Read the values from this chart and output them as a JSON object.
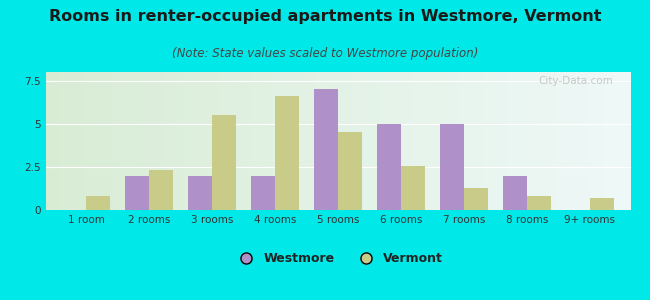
{
  "title": "Rooms in renter-occupied apartments in Westmore, Vermont",
  "subtitle": "(Note: State values scaled to Westmore population)",
  "categories": [
    "1 room",
    "2 rooms",
    "3 rooms",
    "4 rooms",
    "5 rooms",
    "6 rooms",
    "7 rooms",
    "8 rooms",
    "9+ rooms"
  ],
  "westmore_values": [
    0,
    2.0,
    2.0,
    2.0,
    7.0,
    5.0,
    5.0,
    2.0,
    0
  ],
  "vermont_values": [
    0.8,
    2.3,
    5.5,
    6.6,
    4.5,
    2.55,
    1.3,
    0.8,
    0.7
  ],
  "westmore_color": "#b090c8",
  "vermont_color": "#c8cc88",
  "background_outer": "#00e8e8",
  "background_inner_left": "#d8ecd4",
  "background_inner_right": "#eef8f8",
  "ylim": [
    0,
    8.0
  ],
  "yticks": [
    0,
    2.5,
    5,
    7.5
  ],
  "title_fontsize": 11.5,
  "subtitle_fontsize": 8.5,
  "legend_fontsize": 9,
  "tick_fontsize": 7.5,
  "bar_width": 0.38,
  "watermark": "City-Data.com"
}
